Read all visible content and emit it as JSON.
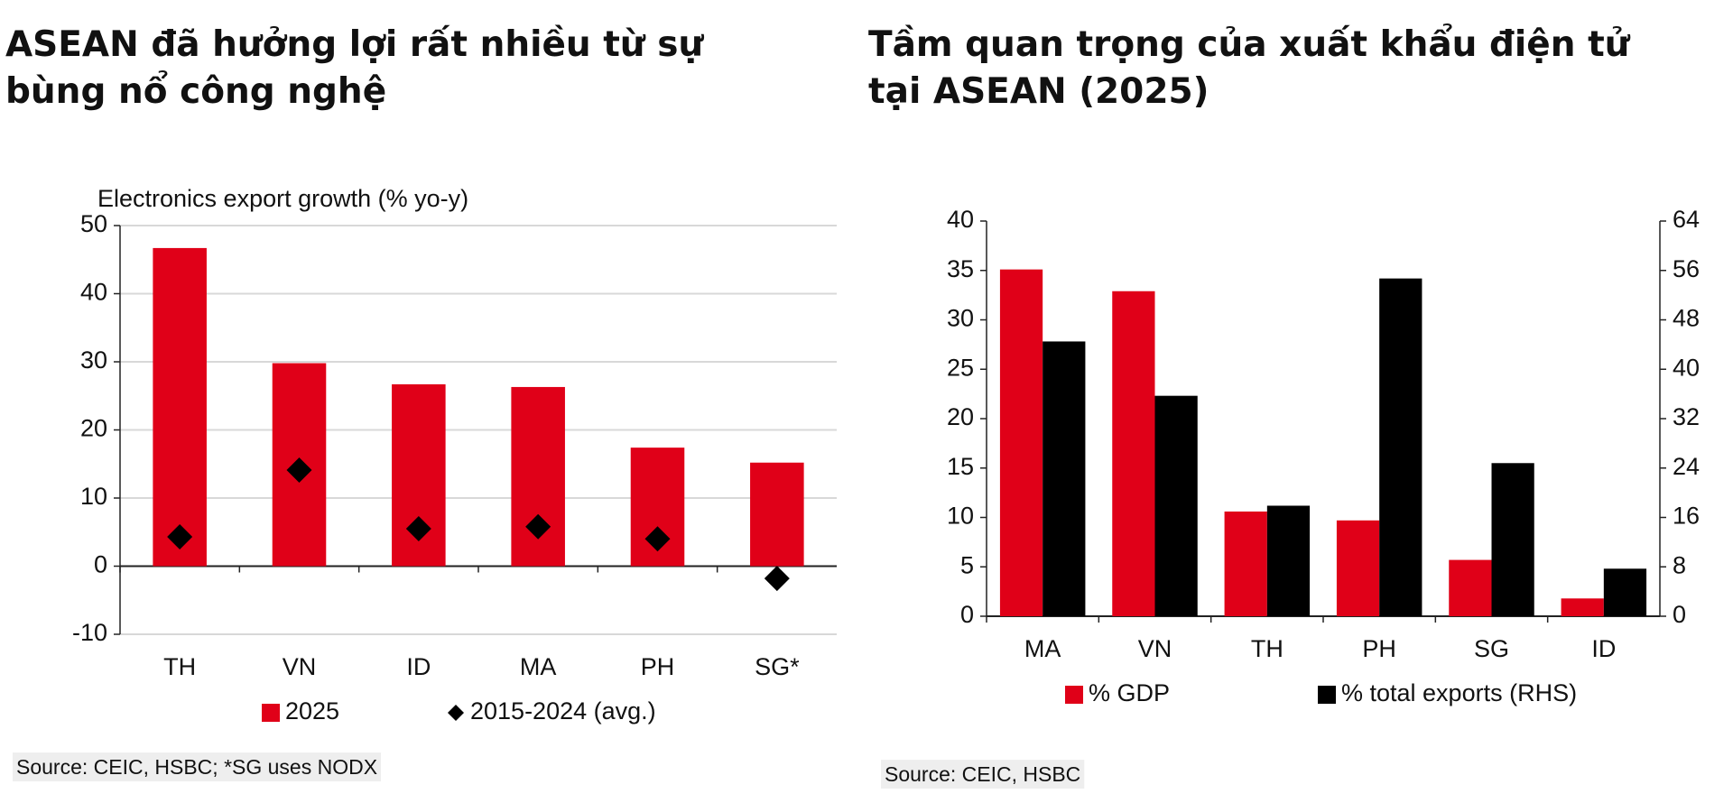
{
  "chart_data": [
    {
      "type": "bar",
      "title": "ASEAN đã hưởng lợi rất nhiều từ sự bùng nổ công nghệ",
      "ylabel": "Electronics export growth (% yo-y)",
      "categories": [
        "TH",
        "VN",
        "ID",
        "MA",
        "PH",
        "SG*"
      ],
      "series": [
        {
          "name": "2025",
          "color": "#e00018",
          "type": "bar",
          "values": [
            46.7,
            29.8,
            26.7,
            26.3,
            17.4,
            15.2
          ]
        },
        {
          "name": "2015-2024 (avg.)",
          "color": "#000000",
          "type": "scatter",
          "values": [
            4.3,
            14.1,
            5.5,
            5.8,
            4.0,
            -1.8
          ]
        }
      ],
      "ylim": [
        -10,
        50
      ],
      "yticks": [
        -10,
        0,
        10,
        20,
        30,
        40,
        50
      ],
      "grid": true,
      "source": "Source: CEIC, HSBC; *SG uses NODX"
    },
    {
      "type": "bar",
      "title": "Tầm quan trọng của xuất khẩu điện tử tại ASEAN (2025)",
      "categories": [
        "MA",
        "VN",
        "TH",
        "PH",
        "SG",
        "ID"
      ],
      "series": [
        {
          "name": "% GDP",
          "color": "#e00018",
          "type": "bar",
          "values": [
            35.1,
            32.9,
            10.6,
            9.7,
            5.7,
            1.8
          ]
        },
        {
          "name": "% total exports (RHS)",
          "color": "#000000",
          "type": "bar",
          "axis": "y2",
          "values": [
            44.5,
            35.7,
            17.9,
            54.7,
            24.8,
            7.7
          ]
        }
      ],
      "ylim": [
        0,
        40
      ],
      "yticks": [
        0,
        5,
        10,
        15,
        20,
        25,
        30,
        35,
        40
      ],
      "y2lim": [
        0,
        64
      ],
      "y2ticks": [
        0,
        8,
        16,
        24,
        32,
        40,
        48,
        56,
        64
      ],
      "grid": false,
      "source": "Source: CEIC, HSBC"
    }
  ]
}
